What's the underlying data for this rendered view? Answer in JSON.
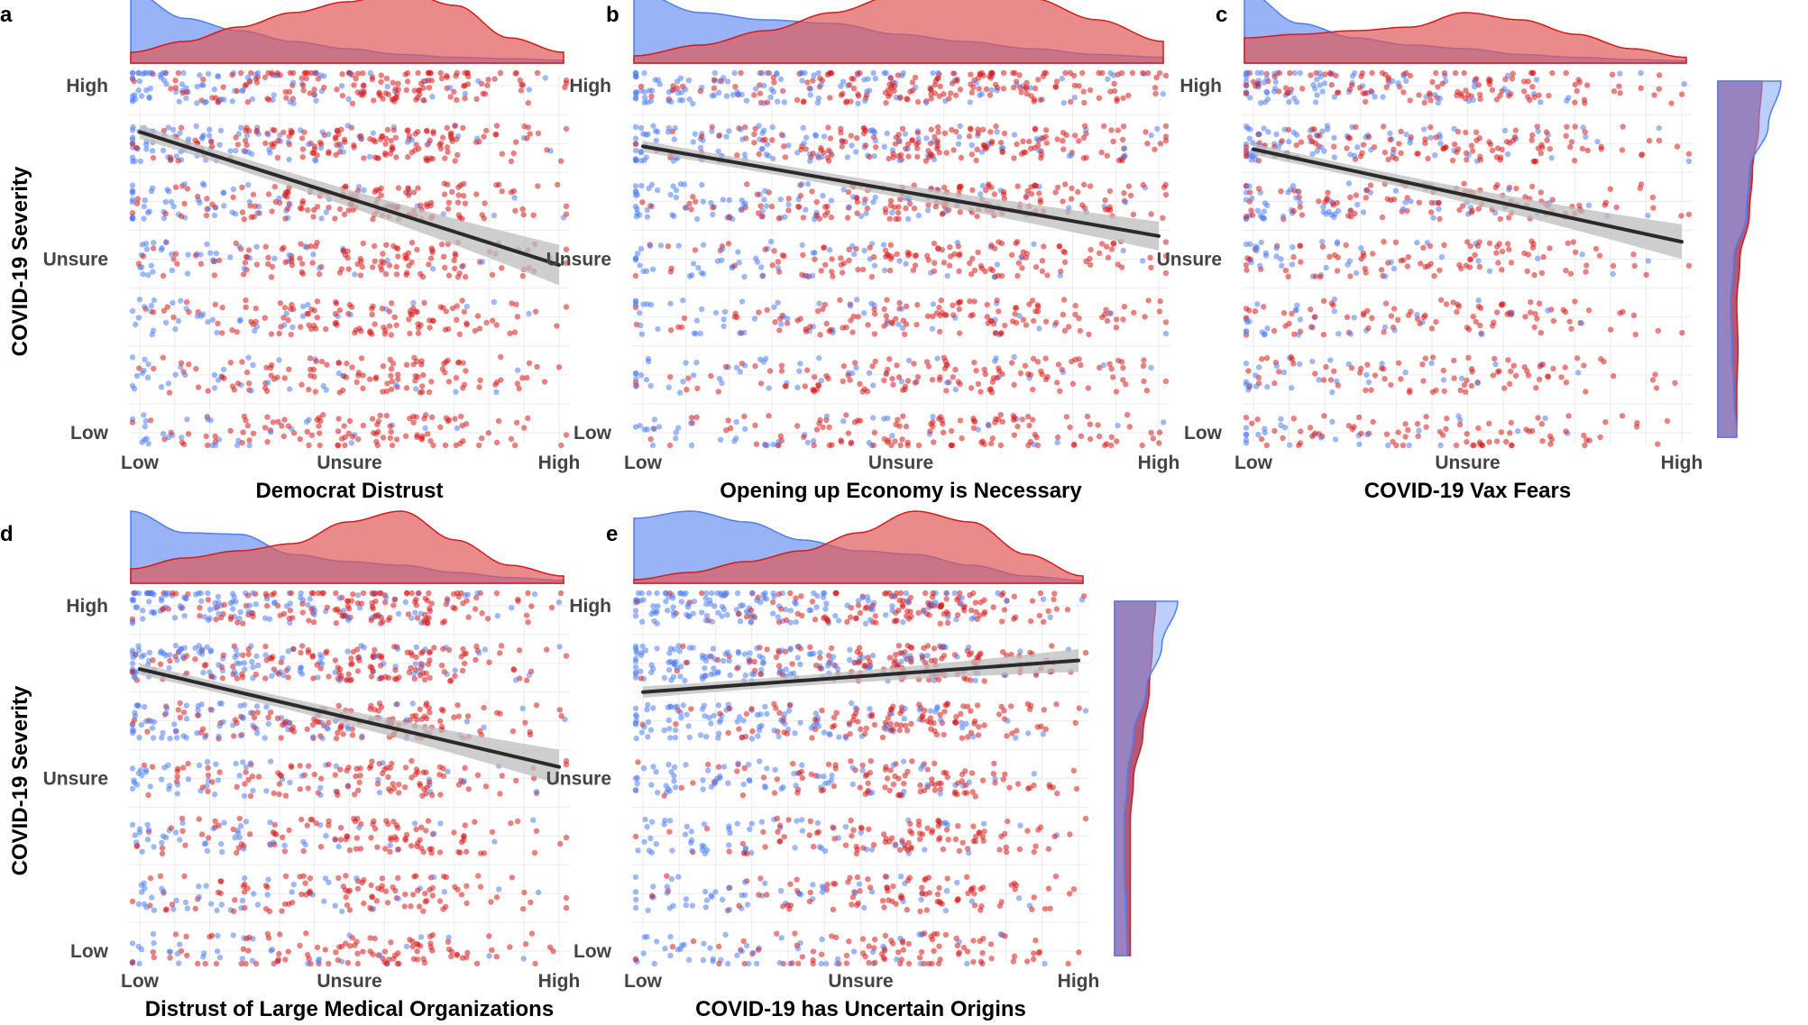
{
  "colors": {
    "blue": "#4f7ef2",
    "red": "#d71a1a",
    "blue_fill": "#86a6f5",
    "red_fill": "#e05a5a",
    "overlap_fill": "#a4486f",
    "trend": "#2a2a2a",
    "band": "#bdbdbd",
    "grid": "#ebebeb"
  },
  "y_axis_title": "COVID-19 Severity",
  "chart_data": [
    {
      "panel": "a",
      "type": "scatter",
      "xlabel": "Democrat Distrust",
      "ylabel": "COVID-19 Severity",
      "x_ticks": [
        "Low",
        "Unsure",
        "High"
      ],
      "y_ticks": [
        "High",
        "Unsure",
        "Low"
      ],
      "xlim": [
        1,
        7
      ],
      "ylim": [
        1,
        7
      ],
      "x_levels": 13,
      "y_levels": 7,
      "trend": {
        "x": [
          1,
          7
        ],
        "y": [
          6.2,
          3.9
        ]
      },
      "band": [
        0.12,
        0.35
      ],
      "blue_density": [
        1.0,
        0.62,
        0.45,
        0.3,
        0.2,
        0.12,
        0.08,
        0.06,
        0.04
      ],
      "red_density": [
        0.15,
        0.3,
        0.5,
        0.7,
        0.85,
        1.0,
        0.8,
        0.35,
        0.15
      ],
      "blue_centroid": 1.8,
      "red_centroid": 4.6,
      "show_right_marginal": false
    },
    {
      "panel": "b",
      "type": "scatter",
      "xlabel": "Opening up Economy is Necessary",
      "ylabel": "COVID-19 Severity",
      "x_ticks": [
        "Low",
        "Unsure",
        "High"
      ],
      "y_ticks": [
        "High",
        "Unsure",
        "Low"
      ],
      "xlim": [
        1,
        7
      ],
      "ylim": [
        1,
        7
      ],
      "x_levels": 13,
      "y_levels": 7,
      "trend": {
        "x": [
          1,
          7
        ],
        "y": [
          5.95,
          4.4
        ]
      },
      "band": [
        0.1,
        0.25
      ],
      "blue_density": [
        1.0,
        0.7,
        0.6,
        0.55,
        0.4,
        0.3,
        0.2,
        0.12,
        0.08
      ],
      "red_density": [
        0.1,
        0.25,
        0.45,
        0.7,
        0.95,
        1.0,
        0.9,
        0.6,
        0.3
      ],
      "blue_centroid": 2.1,
      "red_centroid": 4.7,
      "show_right_marginal": false
    },
    {
      "panel": "c",
      "type": "scatter",
      "xlabel": "COVID-19 Vax Fears",
      "ylabel": "COVID-19 Severity",
      "x_ticks": [
        "Low",
        "Unsure",
        "High"
      ],
      "y_ticks": [
        "High",
        "Unsure",
        "Low"
      ],
      "xlim": [
        1,
        7
      ],
      "ylim": [
        1,
        7
      ],
      "x_levels": 13,
      "y_levels": 7,
      "trend": {
        "x": [
          1,
          7
        ],
        "y": [
          5.9,
          4.3
        ]
      },
      "band": [
        0.1,
        0.3
      ],
      "blue_density": [
        1.0,
        0.55,
        0.35,
        0.25,
        0.2,
        0.12,
        0.08,
        0.05,
        0.03
      ],
      "red_density": [
        0.35,
        0.4,
        0.45,
        0.5,
        0.7,
        0.6,
        0.4,
        0.2,
        0.08
      ],
      "blue_centroid": 1.7,
      "red_centroid": 3.8,
      "show_right_marginal": true,
      "right_blue": [
        0.3,
        0.25,
        0.22,
        0.2,
        0.25,
        0.45,
        0.5,
        0.8,
        1.0
      ],
      "right_red": [
        0.3,
        0.3,
        0.32,
        0.3,
        0.35,
        0.5,
        0.55,
        0.65,
        0.7
      ]
    },
    {
      "panel": "d",
      "type": "scatter",
      "xlabel": "Distrust of Large Medical Organizations",
      "ylabel": "COVID-19 Severity",
      "x_ticks": [
        "Low",
        "Unsure",
        "High"
      ],
      "y_ticks": [
        "High",
        "Unsure",
        "Low"
      ],
      "xlim": [
        1,
        7
      ],
      "ylim": [
        1,
        7
      ],
      "x_levels": 13,
      "y_levels": 7,
      "trend": {
        "x": [
          1,
          7
        ],
        "y": [
          5.9,
          4.2
        ]
      },
      "band": [
        0.1,
        0.3
      ],
      "blue_density": [
        1.0,
        0.7,
        0.68,
        0.4,
        0.3,
        0.25,
        0.15,
        0.08,
        0.04
      ],
      "red_density": [
        0.2,
        0.35,
        0.45,
        0.55,
        0.85,
        1.0,
        0.6,
        0.25,
        0.1
      ],
      "blue_centroid": 1.9,
      "red_centroid": 3.9,
      "show_right_marginal": false
    },
    {
      "panel": "e",
      "type": "scatter",
      "xlabel": "COVID-19 has Uncertain Origins",
      "ylabel": "COVID-19 Severity",
      "x_ticks": [
        "Low",
        "Unsure",
        "High"
      ],
      "y_ticks": [
        "High",
        "Unsure",
        "Low"
      ],
      "xlim": [
        1,
        7
      ],
      "ylim": [
        1,
        7
      ],
      "x_levels": 13,
      "y_levels": 7,
      "trend": {
        "x": [
          1,
          7
        ],
        "y": [
          5.5,
          6.05
        ]
      },
      "band": [
        0.1,
        0.2
      ],
      "blue_density": [
        0.9,
        1.0,
        0.85,
        0.6,
        0.45,
        0.4,
        0.25,
        0.1,
        0.04
      ],
      "red_density": [
        0.05,
        0.15,
        0.3,
        0.45,
        0.7,
        1.0,
        0.85,
        0.4,
        0.1
      ],
      "blue_centroid": 2.4,
      "red_centroid": 4.6,
      "show_right_marginal": true,
      "right_blue": [
        0.2,
        0.18,
        0.15,
        0.15,
        0.2,
        0.3,
        0.5,
        0.75,
        1.0
      ],
      "right_red": [
        0.25,
        0.25,
        0.25,
        0.25,
        0.3,
        0.45,
        0.55,
        0.6,
        0.65
      ]
    }
  ]
}
